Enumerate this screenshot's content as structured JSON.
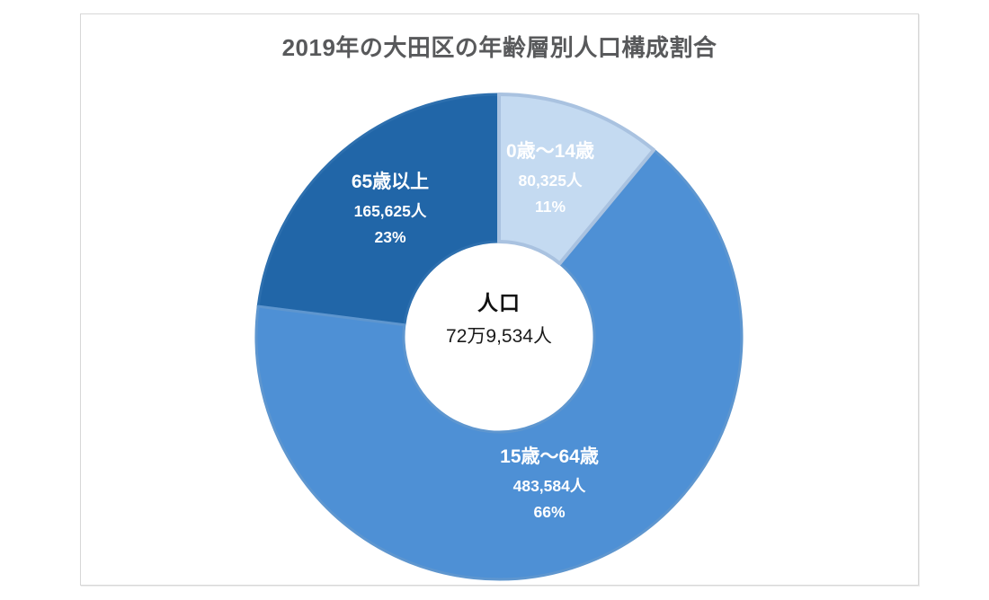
{
  "chart_data": {
    "type": "pie",
    "subtype": "doughnut",
    "title": "2019年の大田区の年齢層別人口構成割合",
    "title_color": "#58595b",
    "legend": "none",
    "start_angle_deg": 0,
    "direction": "clockwise",
    "unit": "人",
    "total": 729534,
    "center_label": {
      "heading": "人口",
      "value": "72万9,534人"
    },
    "slices": [
      {
        "label": "0歳〜14歳",
        "value": 80325,
        "value_label": "80,325人",
        "percent": 11,
        "percent_label": "11%",
        "color": "#c4daf1",
        "border_color": "#a9c2e0",
        "border_width": 4,
        "text_color": "#ffffff"
      },
      {
        "label": "15歳〜64歳",
        "value": 483584,
        "value_label": "483,584人",
        "percent": 66,
        "percent_label": "66%",
        "color": "#4e90d5",
        "border_color": "#5e96cf",
        "border_width": 3,
        "text_color": "#ffffff"
      },
      {
        "label": "65歳以上",
        "value": 165625,
        "value_label": "165,625人",
        "percent": 23,
        "percent_label": "23%",
        "color": "#2166a8",
        "border_color": "#2d6fae",
        "border_width": 3,
        "text_color": "#ffffff"
      }
    ]
  }
}
